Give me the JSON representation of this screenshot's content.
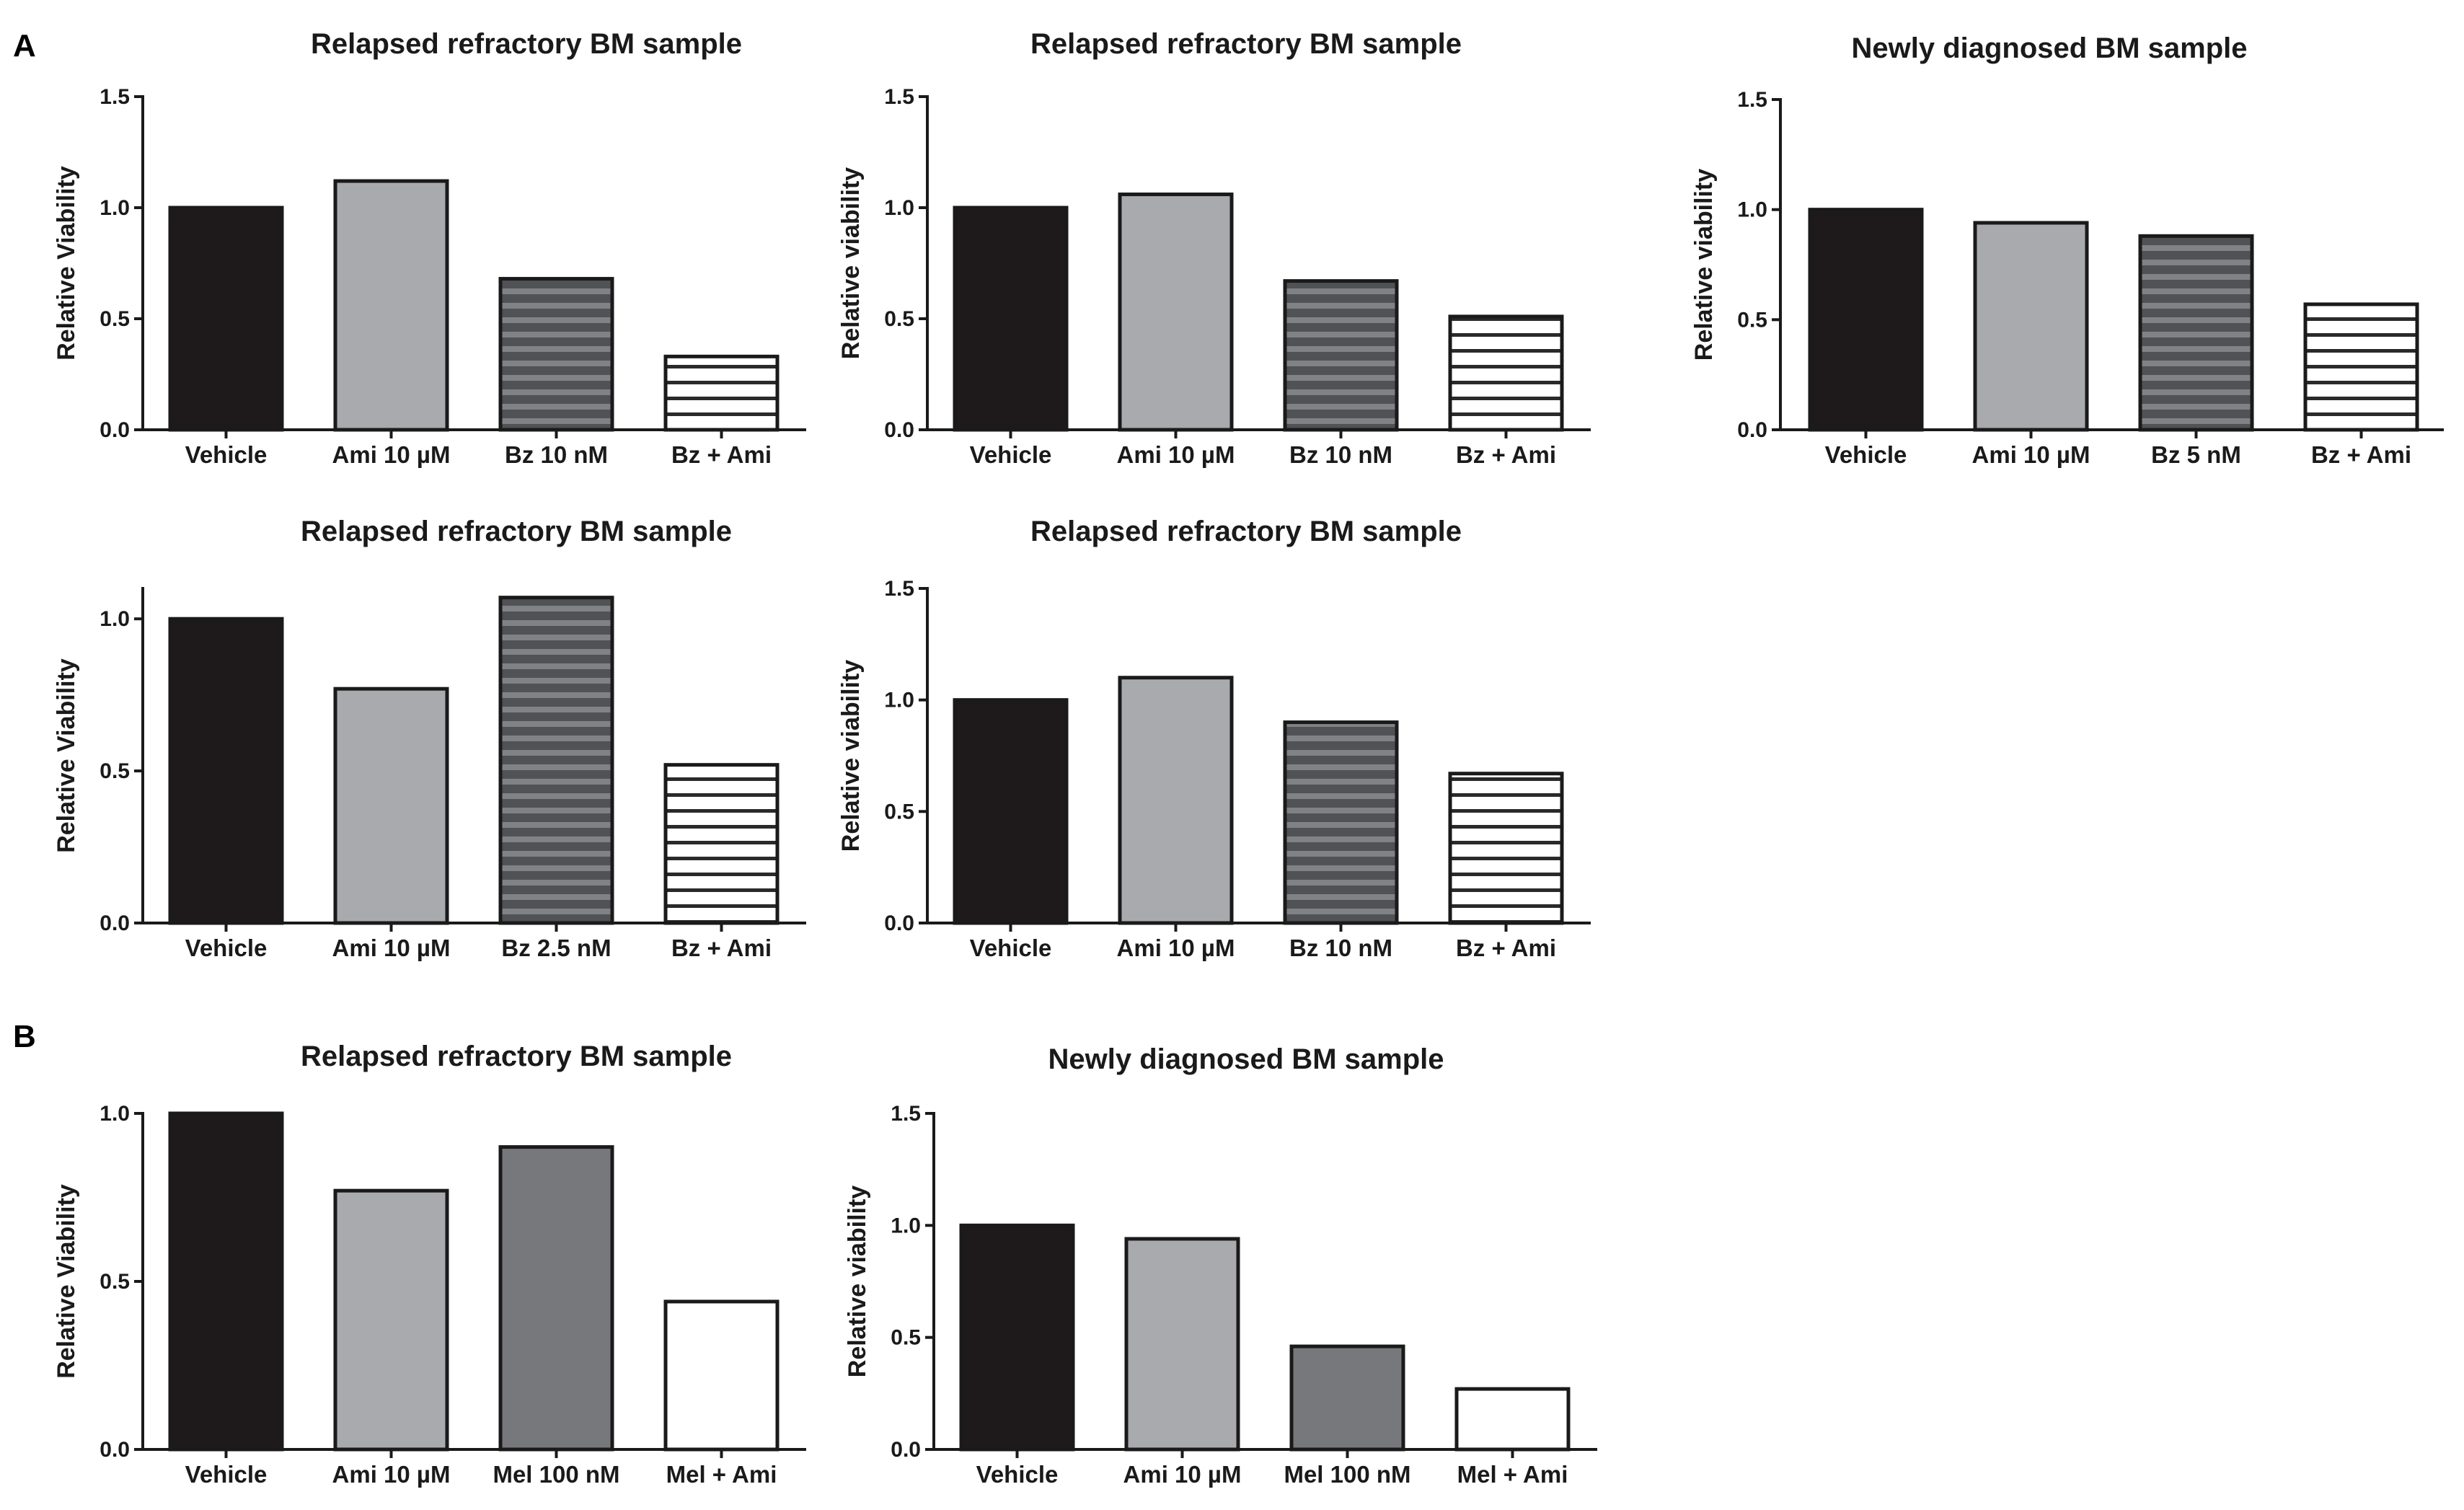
{
  "panels": {
    "a": "A",
    "b": "B"
  },
  "colors": {
    "black": "#1e1a1b",
    "light_grey": "#a9aaad",
    "dark_grey": "#76787c",
    "white": "#ffffff",
    "stripe_bg": "#ffffff",
    "stripe_dark": "#505256"
  },
  "chart_data": [
    {
      "type": "bar",
      "panel": "A",
      "title": "Relapsed refractory BM sample",
      "ylabel": "Relative Viability",
      "ylim": [
        0,
        1.5
      ],
      "yticks": [
        "0.0",
        "0.5",
        "1.0",
        "1.5"
      ],
      "ytick_values": [
        0,
        0.5,
        1.0,
        1.5
      ],
      "categories": [
        "Vehicle",
        "Ami 10 µM",
        "Bz 10 nM",
        "Bz + Ami"
      ],
      "values": [
        1.0,
        1.12,
        0.68,
        0.33
      ],
      "fills": [
        "black",
        "light_grey",
        "hatch_dark",
        "hatch_white"
      ]
    },
    {
      "type": "bar",
      "panel": "A",
      "title": "Relapsed refractory BM sample",
      "ylabel": "Relative viability",
      "ylim": [
        0,
        1.5
      ],
      "yticks": [
        "0.0",
        "0.5",
        "1.0",
        "1.5"
      ],
      "ytick_values": [
        0,
        0.5,
        1.0,
        1.5
      ],
      "categories": [
        "Vehicle",
        "Ami 10 µM",
        "Bz 10 nM",
        "Bz + Ami"
      ],
      "values": [
        1.0,
        1.06,
        0.67,
        0.51
      ],
      "fills": [
        "black",
        "light_grey",
        "hatch_dark",
        "hatch_white"
      ]
    },
    {
      "type": "bar",
      "panel": "A",
      "title": "Newly diagnosed BM sample",
      "ylabel": "Relative viability",
      "ylim": [
        0,
        1.5
      ],
      "yticks": [
        "0.0",
        "0.5",
        "1.0",
        "1.5"
      ],
      "ytick_values": [
        0,
        0.5,
        1.0,
        1.5
      ],
      "categories": [
        "Vehicle",
        "Ami 10 µM",
        "Bz 5 nM",
        "Bz + Ami"
      ],
      "values": [
        1.0,
        0.94,
        0.88,
        0.57
      ],
      "fills": [
        "black",
        "light_grey",
        "hatch_dark",
        "hatch_white"
      ]
    },
    {
      "type": "bar",
      "panel": "A",
      "title": "Relapsed refractory BM sample",
      "ylabel": "Relative Viability",
      "ylim": [
        0,
        1.1
      ],
      "yticks": [
        "0.0",
        "0.5",
        "1.0"
      ],
      "ytick_values": [
        0,
        0.5,
        1.0
      ],
      "categories": [
        "Vehicle",
        "Ami 10 µM",
        "Bz 2.5 nM",
        "Bz + Ami"
      ],
      "values": [
        1.0,
        0.77,
        1.07,
        0.52
      ],
      "fills": [
        "black",
        "light_grey",
        "hatch_dark",
        "hatch_white"
      ]
    },
    {
      "type": "bar",
      "panel": "A",
      "title": "Relapsed refractory BM sample",
      "ylabel": "Relative viability",
      "ylim": [
        0,
        1.5
      ],
      "yticks": [
        "0.0",
        "0.5",
        "1.0",
        "1.5"
      ],
      "ytick_values": [
        0,
        0.5,
        1.0,
        1.5
      ],
      "categories": [
        "Vehicle",
        "Ami 10 µM",
        "Bz 10 nM",
        "Bz + Ami"
      ],
      "values": [
        1.0,
        1.1,
        0.9,
        0.67
      ],
      "fills": [
        "black",
        "light_grey",
        "hatch_dark",
        "hatch_white"
      ]
    },
    {
      "type": "bar",
      "panel": "B",
      "title": "Relapsed refractory BM sample",
      "ylabel": "Relative Viability",
      "ylim": [
        0,
        1.0
      ],
      "yticks": [
        "0.0",
        "0.5",
        "1.0"
      ],
      "ytick_values": [
        0,
        0.5,
        1.0
      ],
      "categories": [
        "Vehicle",
        "Ami 10 µM",
        "Mel 100 nM",
        "Mel + Ami"
      ],
      "values": [
        1.0,
        0.77,
        0.9,
        0.44
      ],
      "fills": [
        "black",
        "light_grey",
        "dark_grey",
        "white"
      ]
    },
    {
      "type": "bar",
      "panel": "B",
      "title": "Newly diagnosed BM sample",
      "ylabel": "Relative viability",
      "ylim": [
        0,
        1.5
      ],
      "yticks": [
        "0.0",
        "0.5",
        "1.0",
        "1.5"
      ],
      "ytick_values": [
        0,
        0.5,
        1.0,
        1.5
      ],
      "categories": [
        "Vehicle",
        "Ami 10 µM",
        "Mel 100 nM",
        "Mel + Ami"
      ],
      "values": [
        1.0,
        0.94,
        0.46,
        0.27
      ],
      "fills": [
        "black",
        "light_grey",
        "dark_grey",
        "white"
      ]
    }
  ]
}
